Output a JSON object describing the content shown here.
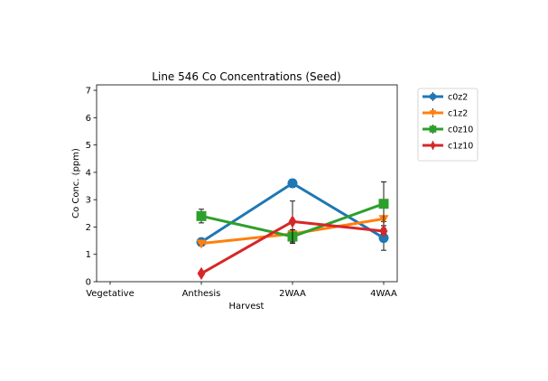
{
  "chart_data": {
    "type": "line",
    "title": "Line 546 Co Concentrations (Seed)",
    "xlabel": "Harvest",
    "ylabel": "Co Conc. (ppm)",
    "categories": [
      "Vegetative",
      "Anthesis",
      "2WAA",
      "4WAA"
    ],
    "ylim": [
      0,
      7.2
    ],
    "yticks": [
      0,
      1,
      2,
      3,
      4,
      5,
      6,
      7
    ],
    "grid": false,
    "legend_position": "outside-top-right",
    "series": [
      {
        "name": "c0z2",
        "color": "#1f77b4",
        "marker": "circle",
        "values": [
          null,
          1.45,
          3.6,
          1.6
        ],
        "errors": [
          null,
          0.08,
          0.15,
          0.45
        ]
      },
      {
        "name": "c1z2",
        "color": "#ff7f0e",
        "marker": "triangle-down",
        "values": [
          null,
          1.4,
          1.75,
          2.3
        ],
        "errors": [
          null,
          0.05,
          0.1,
          0.1
        ]
      },
      {
        "name": "c0z10",
        "color": "#2ca02c",
        "marker": "square",
        "values": [
          null,
          2.4,
          1.65,
          2.85
        ],
        "errors": [
          null,
          0.25,
          0.25,
          0.8
        ]
      },
      {
        "name": "c1z10",
        "color": "#d62728",
        "marker": "diamond",
        "values": [
          null,
          0.3,
          2.2,
          1.85
        ],
        "errors": [
          null,
          0.05,
          0.75,
          0.1
        ]
      }
    ]
  }
}
